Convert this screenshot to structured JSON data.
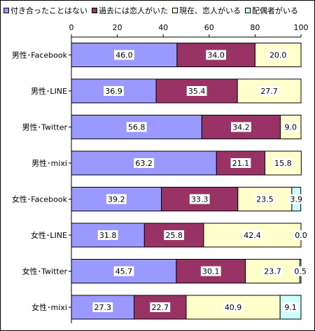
{
  "chart_data": {
    "type": "bar",
    "orientation": "horizontal",
    "stacked": true,
    "categories": [
      "男性･Facebook",
      "男性･LINE",
      "男性･Twitter",
      "男性･mixi",
      "女性･Facebook",
      "女性･LINE",
      "女性･Twitter",
      "女性･mixi"
    ],
    "series": [
      {
        "name": "付き合ったことはない",
        "color": "#9999ff",
        "values": [
          46.0,
          36.9,
          56.8,
          63.2,
          39.2,
          31.8,
          45.7,
          27.3
        ]
      },
      {
        "name": "過去には恋人がいた",
        "color": "#993366",
        "values": [
          34.0,
          35.4,
          34.2,
          21.1,
          33.3,
          25.8,
          30.1,
          22.7
        ]
      },
      {
        "name": "現在、恋人がいる",
        "color": "#ffffcc",
        "values": [
          20.0,
          27.7,
          9.0,
          15.8,
          23.5,
          42.4,
          23.7,
          40.9
        ]
      },
      {
        "name": "配偶者がいる",
        "color": "#ccffff",
        "values": [
          0.0,
          0.0,
          0.0,
          0.0,
          3.9,
          0.0,
          0.5,
          9.1
        ]
      }
    ],
    "data_labels": [
      [
        "46.0",
        "34.0",
        "20.0",
        null
      ],
      [
        "36.9",
        "35.4",
        "27.7",
        null
      ],
      [
        "56.8",
        "34.2",
        "9.0",
        null
      ],
      [
        "63.2",
        "21.1",
        "15.8",
        null
      ],
      [
        "39.2",
        "33.3",
        "23.5",
        "3.9"
      ],
      [
        "31.8",
        "25.8",
        "42.4",
        "0.0"
      ],
      [
        "45.7",
        "30.1",
        "23.7",
        "0.5"
      ],
      [
        "27.3",
        "22.7",
        "40.9",
        "9.1"
      ]
    ],
    "xlim": [
      0,
      100
    ],
    "xticks": [
      "0",
      "20",
      "40",
      "60",
      "80",
      "100"
    ],
    "legend_position": "top",
    "grid": false
  }
}
